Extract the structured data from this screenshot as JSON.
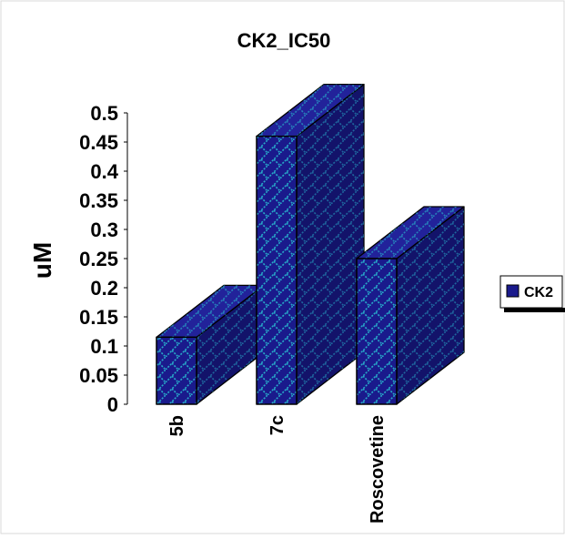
{
  "chart_data": {
    "type": "bar",
    "title": "CK2_IC50",
    "xlabel": "",
    "ylabel": "uM",
    "categories": [
      "5b",
      "7c",
      "Roscovetine"
    ],
    "series": [
      {
        "name": "CK2",
        "values": [
          0.115,
          0.46,
          0.25
        ]
      }
    ],
    "ylim": [
      0,
      0.5
    ],
    "yticks": [
      "0",
      "0.05",
      "0.1",
      "0.15",
      "0.2",
      "0.25",
      "0.3",
      "0.35",
      "0.4",
      "0.45",
      "0.5"
    ],
    "style": "3d-column",
    "grid": false,
    "legend_position": "right"
  },
  "colors": {
    "bar_fill": "#1a1a8c",
    "bar_side": "#13136a",
    "bar_top": "#22229a",
    "pattern": "#27a9c9",
    "outline": "#000000",
    "frame": "#d9d9d9"
  }
}
